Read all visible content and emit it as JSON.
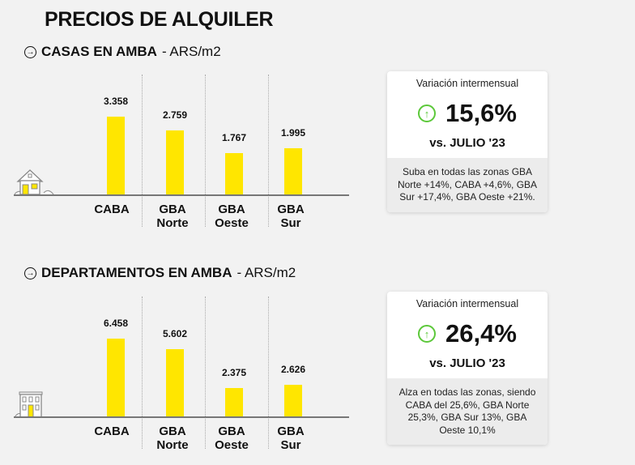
{
  "title": "PRECIOS DE ALQUILER",
  "colors": {
    "bar": "#ffe600",
    "up": "#5cc83a",
    "background": "#f2f2f2"
  },
  "sections": [
    {
      "heading": "CASAS EN AMBA",
      "unit": "- ARS/m2",
      "icon": "house-icon",
      "card": {
        "label": "Variación intermensual",
        "value": "15,6%",
        "trend": "up",
        "vs": "vs. JULIO '23",
        "note": "Suba en todas las zonas GBA Norte +14%, CABA +4,6%, GBA Sur +17,4%, GBA Oeste +21%."
      }
    },
    {
      "heading": "DEPARTAMENTOS EN AMBA",
      "unit": "- ARS/m2",
      "icon": "apartment-building-icon",
      "card": {
        "label": "Variación intermensual",
        "value": "26,4%",
        "trend": "up",
        "vs": "vs. JULIO '23",
        "note": "Alza en todas las zonas, siendo CABA del 25,6%, GBA Norte 25,3%, GBA Sur 13%, GBA Oeste 10,1%"
      }
    }
  ],
  "chart_data": [
    {
      "type": "bar",
      "title": "CASAS EN AMBA - ARS/m2",
      "categories": [
        "CABA",
        "GBA\nNorte",
        "GBA\nOeste",
        "GBA\nSur"
      ],
      "values": [
        3358,
        2759,
        1767,
        1995
      ],
      "labels": [
        "3.358",
        "2.759",
        "1.767",
        "1.995"
      ],
      "grid": false
    },
    {
      "type": "bar",
      "title": "DEPARTAMENTOS EN AMBA - ARS/m2",
      "categories": [
        "CABA",
        "GBA\nNorte",
        "GBA\nOeste",
        "GBA\nSur"
      ],
      "values": [
        6458,
        5602,
        2375,
        2626
      ],
      "labels": [
        "6.458",
        "5.602",
        "2.375",
        "2.626"
      ],
      "grid": false
    }
  ]
}
